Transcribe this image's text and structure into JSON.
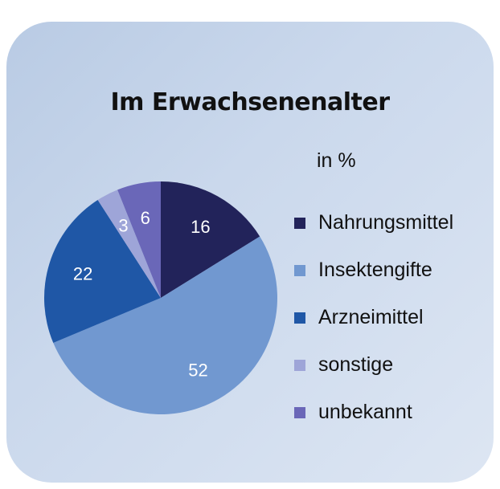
{
  "chart_data": {
    "type": "pie",
    "title": "Im Erwachsenenalter",
    "unit_label": "in %",
    "legend_position": "right",
    "slices": [
      {
        "label": "Nahrungsmittel",
        "value": 16,
        "color": "#22235a",
        "label_color": "#ffffff"
      },
      {
        "label": "Insektengifte",
        "value": 52,
        "color": "#7198d0",
        "label_color": "#ffffff"
      },
      {
        "label": "Arzneimittel",
        "value": 22,
        "color": "#1f57a6",
        "label_color": "#ffffff"
      },
      {
        "label": "sonstige",
        "value": 3,
        "color": "#9ea5d8",
        "label_color": "#ffffff"
      },
      {
        "label": "unbekannt",
        "value": 6,
        "color": "#6a67b8",
        "label_color": "#ffffff"
      }
    ]
  }
}
